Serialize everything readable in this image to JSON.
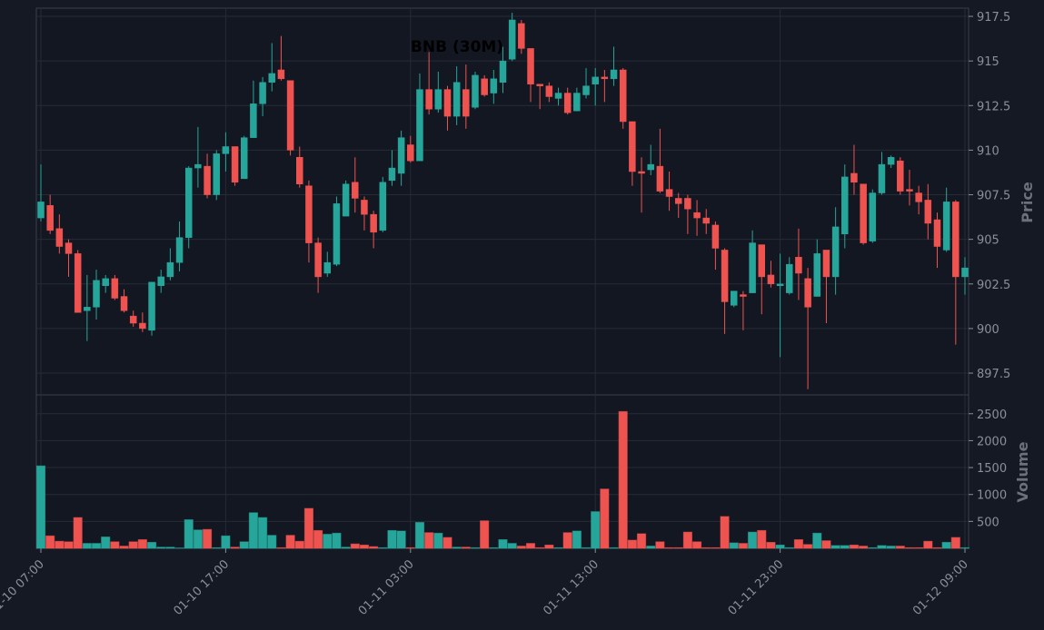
{
  "chart_data": {
    "type": "candlestick",
    "title": "BNB (30M)",
    "x": [
      "01-10 07:00",
      "01-10 07:30",
      "01-10 08:00",
      "01-10 08:30",
      "01-10 09:00",
      "01-10 09:30",
      "01-10 10:00",
      "01-10 10:30",
      "01-10 11:00",
      "01-10 11:30",
      "01-10 12:00",
      "01-10 12:30",
      "01-10 13:00",
      "01-10 13:30",
      "01-10 14:00",
      "01-10 14:30",
      "01-10 15:00",
      "01-10 15:30",
      "01-10 16:00",
      "01-10 16:30",
      "01-10 17:00",
      "01-10 17:30",
      "01-10 18:00",
      "01-10 18:30",
      "01-10 19:00",
      "01-10 19:30",
      "01-10 20:00",
      "01-10 20:30",
      "01-10 21:00",
      "01-10 21:30",
      "01-10 22:00",
      "01-10 22:30",
      "01-10 23:00",
      "01-10 23:30",
      "01-11 00:00",
      "01-11 00:30",
      "01-11 01:00",
      "01-11 01:30",
      "01-11 02:00",
      "01-11 02:30",
      "01-11 03:00",
      "01-11 03:30",
      "01-11 04:00",
      "01-11 04:30",
      "01-11 05:00",
      "01-11 05:30",
      "01-11 06:00",
      "01-11 06:30",
      "01-11 07:00",
      "01-11 07:30",
      "01-11 08:00",
      "01-11 08:30",
      "01-11 09:00",
      "01-11 09:30",
      "01-11 10:00",
      "01-11 10:30",
      "01-11 11:00",
      "01-11 11:30",
      "01-11 12:00",
      "01-11 12:30",
      "01-11 13:00",
      "01-11 13:30",
      "01-11 14:00",
      "01-11 14:30",
      "01-11 15:00",
      "01-11 15:30",
      "01-11 16:00",
      "01-11 16:30",
      "01-11 17:00",
      "01-11 17:30",
      "01-11 18:00",
      "01-11 18:30",
      "01-11 19:00",
      "01-11 19:30",
      "01-11 20:00",
      "01-11 20:30",
      "01-11 21:00",
      "01-11 21:30",
      "01-11 22:00",
      "01-11 22:30",
      "01-11 23:00",
      "01-11 23:30",
      "01-12 00:00",
      "01-12 00:30",
      "01-12 01:00",
      "01-12 01:30",
      "01-12 02:00",
      "01-12 02:30",
      "01-12 03:00",
      "01-12 03:30",
      "01-12 04:00",
      "01-12 04:30",
      "01-12 05:00",
      "01-12 05:30",
      "01-12 06:00",
      "01-12 06:30",
      "01-12 07:00",
      "01-12 07:30",
      "01-12 08:00",
      "01-12 08:30",
      "01-12 09:00"
    ],
    "open": [
      906.2,
      906.9,
      905.6,
      904.8,
      904.2,
      901.0,
      901.2,
      902.4,
      902.8,
      901.8,
      900.7,
      900.3,
      899.9,
      902.4,
      902.9,
      903.7,
      905.1,
      909.0,
      909.1,
      907.5,
      909.8,
      910.2,
      908.4,
      910.7,
      912.6,
      913.8,
      914.5,
      913.9,
      909.6,
      908.0,
      904.8,
      903.1,
      903.6,
      906.3,
      908.2,
      907.2,
      906.4,
      905.5,
      908.3,
      908.7,
      910.3,
      909.4,
      913.4,
      912.3,
      913.4,
      911.9,
      913.4,
      912.4,
      914.0,
      913.2,
      913.8,
      915.1,
      917.1,
      915.7,
      913.7,
      913.6,
      912.9,
      913.2,
      912.2,
      913.1,
      913.7,
      914.1,
      914.0,
      914.5,
      911.6,
      908.8,
      908.9,
      909.1,
      907.8,
      907.3,
      907.3,
      906.5,
      906.2,
      905.8,
      904.4,
      901.3,
      901.9,
      902.0,
      904.7,
      903.0,
      902.4,
      902.0,
      904.0,
      902.8,
      901.8,
      904.4,
      902.9,
      905.3,
      908.7,
      908.1,
      904.9,
      907.6,
      909.2,
      909.4,
      907.8,
      907.6,
      907.2,
      906.1,
      904.4,
      907.1,
      902.9
    ],
    "high": [
      909.2,
      907.5,
      906.4,
      905.0,
      904.4,
      903.0,
      903.3,
      903.0,
      903.0,
      902.2,
      901.0,
      900.9,
      902.6,
      903.3,
      904.5,
      906.0,
      909.1,
      911.3,
      909.8,
      910.0,
      911.0,
      910.2,
      910.8,
      913.9,
      914.1,
      916.0,
      916.4,
      913.9,
      910.2,
      908.3,
      905.1,
      904.3,
      907.4,
      908.3,
      909.6,
      907.4,
      906.6,
      908.5,
      910.0,
      911.1,
      910.8,
      914.3,
      915.5,
      914.4,
      913.6,
      914.7,
      914.8,
      914.4,
      914.2,
      914.5,
      915.8,
      917.7,
      917.3,
      915.7,
      913.7,
      913.8,
      913.5,
      913.5,
      913.5,
      914.6,
      914.6,
      914.5,
      915.8,
      914.6,
      911.6,
      909.6,
      910.3,
      911.2,
      908.8,
      907.6,
      907.5,
      907.2,
      906.7,
      906.0,
      904.5,
      902.1,
      902.1,
      905.5,
      904.7,
      903.8,
      904.2,
      904.0,
      905.6,
      903.4,
      905.0,
      904.4,
      906.8,
      909.2,
      910.3,
      908.1,
      907.8,
      909.9,
      909.7,
      909.6,
      908.9,
      908.0,
      908.1,
      906.5,
      907.9,
      907.2,
      904.0
    ],
    "low": [
      906.0,
      905.3,
      904.2,
      902.9,
      900.9,
      899.3,
      900.5,
      902.0,
      901.6,
      900.9,
      900.1,
      899.8,
      899.6,
      902.0,
      902.7,
      903.2,
      904.5,
      907.9,
      907.3,
      907.2,
      908.8,
      908.0,
      908.4,
      910.7,
      911.9,
      913.3,
      913.9,
      909.7,
      907.9,
      903.7,
      902.0,
      902.9,
      903.5,
      906.3,
      906.5,
      905.5,
      904.5,
      905.4,
      908.0,
      908.0,
      909.3,
      909.4,
      912.0,
      912.1,
      911.1,
      911.4,
      911.2,
      912.3,
      913.0,
      912.6,
      913.2,
      915.0,
      915.4,
      912.7,
      912.3,
      912.7,
      912.5,
      912.0,
      912.2,
      912.9,
      912.5,
      912.7,
      913.6,
      911.2,
      908.0,
      906.5,
      908.6,
      907.6,
      906.6,
      906.2,
      905.3,
      905.2,
      905.3,
      903.3,
      899.7,
      901.2,
      899.9,
      902.0,
      900.8,
      902.3,
      898.4,
      901.9,
      901.6,
      896.6,
      901.8,
      900.3,
      901.9,
      904.5,
      907.5,
      904.7,
      904.8,
      907.5,
      909.0,
      907.5,
      906.9,
      906.4,
      905.0,
      903.4,
      904.3,
      899.1,
      901.9
    ],
    "close": [
      907.1,
      905.5,
      904.6,
      904.2,
      900.9,
      901.2,
      902.7,
      902.8,
      901.7,
      901.0,
      900.3,
      900.0,
      902.6,
      902.9,
      903.7,
      905.1,
      909.0,
      909.2,
      907.5,
      909.8,
      910.2,
      908.2,
      910.7,
      912.6,
      913.8,
      914.3,
      914.0,
      910.0,
      908.1,
      904.8,
      902.9,
      903.7,
      907.0,
      908.1,
      907.3,
      906.4,
      905.4,
      908.2,
      909.0,
      910.7,
      909.4,
      913.4,
      912.3,
      913.4,
      911.9,
      913.8,
      911.9,
      914.2,
      913.1,
      914.0,
      915.0,
      917.3,
      915.7,
      913.7,
      913.6,
      913.0,
      913.2,
      912.1,
      913.2,
      913.6,
      914.1,
      914.0,
      914.5,
      911.6,
      908.8,
      908.7,
      909.2,
      907.7,
      907.4,
      907.0,
      906.7,
      906.2,
      905.9,
      904.5,
      901.5,
      902.1,
      901.8,
      904.8,
      902.9,
      902.5,
      902.5,
      903.6,
      903.1,
      901.2,
      904.2,
      902.9,
      905.7,
      908.5,
      908.2,
      904.8,
      907.6,
      909.2,
      909.6,
      907.7,
      907.7,
      907.1,
      905.9,
      904.6,
      907.1,
      902.9,
      903.4
    ],
    "volume": [
      1530,
      230,
      130,
      120,
      570,
      90,
      90,
      210,
      120,
      40,
      120,
      160,
      110,
      20,
      20,
      5,
      530,
      340,
      350,
      10,
      230,
      20,
      120,
      660,
      570,
      240,
      10,
      240,
      130,
      740,
      330,
      260,
      280,
      20,
      80,
      60,
      30,
      10,
      330,
      320,
      10,
      480,
      290,
      280,
      200,
      20,
      20,
      10,
      510,
      10,
      160,
      90,
      40,
      90,
      10,
      60,
      10,
      290,
      320,
      10,
      680,
      1100,
      10,
      2540,
      150,
      270,
      40,
      120,
      10,
      10,
      300,
      120,
      10,
      10,
      590,
      100,
      90,
      300,
      330,
      110,
      60,
      10,
      160,
      70,
      280,
      140,
      50,
      50,
      60,
      40,
      10,
      50,
      40,
      40,
      10,
      10,
      130,
      10,
      110,
      200,
      10
    ],
    "up_color": "#26a69a",
    "down_color": "#ef5350",
    "xticks": [
      "01-10 07:00",
      "01-10 17:00",
      "01-11 03:00",
      "01-11 13:00",
      "01-11 23:00",
      "01-12 09:00"
    ],
    "ylabel": "Price",
    "ylim": [
      896.28,
      917.96
    ],
    "yticks": [
      897.5,
      900,
      902.5,
      905,
      907.5,
      910,
      912.5,
      915,
      917.5
    ],
    "volume_label": "Volume",
    "volume_lim": [
      0,
      2850
    ],
    "volume_ticks": [
      500,
      1000,
      1500,
      2000,
      2500
    ],
    "grid": true
  }
}
